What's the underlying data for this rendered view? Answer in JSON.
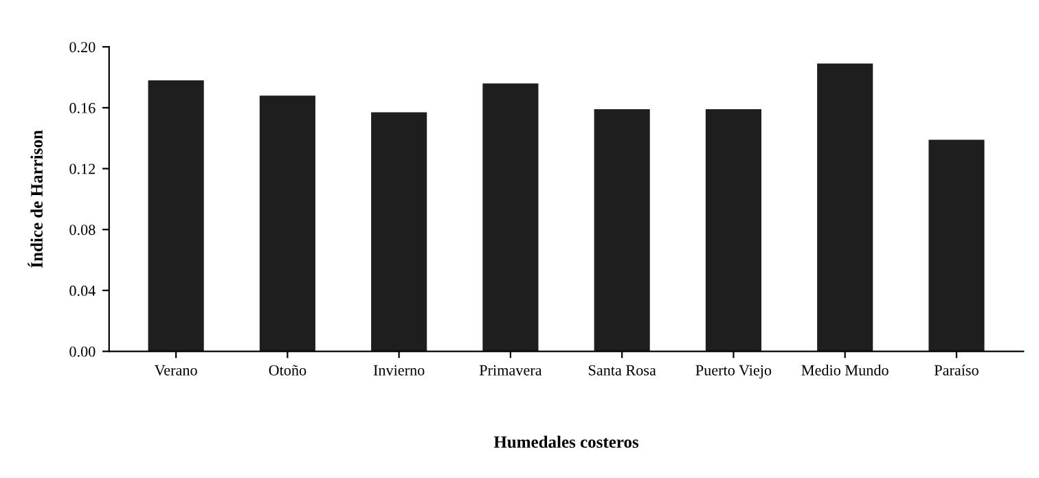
{
  "chart_data": {
    "type": "bar",
    "xlabel": "Humedales costeros",
    "ylabel": "Índice de Harrison",
    "categories": [
      "Verano",
      "Otoño",
      "Invierno",
      "Primavera",
      "Santa Rosa",
      "Puerto Viejo",
      "Medio Mundo",
      "Paraíso"
    ],
    "values": [
      0.178,
      0.168,
      0.157,
      0.176,
      0.159,
      0.159,
      0.189,
      0.139
    ],
    "color": "#1e1e1e",
    "ylim": [
      0,
      0.2
    ],
    "yticks": [
      {
        "value": 0,
        "label": "0.00"
      },
      {
        "value": 0.04,
        "label": "0.04"
      },
      {
        "value": 0.08,
        "label": "0.08"
      },
      {
        "value": 0.12,
        "label": "0.12"
      },
      {
        "value": 0.16,
        "label": "0.16"
      },
      {
        "value": 0.2,
        "label": "0.20"
      }
    ],
    "grid": false,
    "legend": false
  }
}
